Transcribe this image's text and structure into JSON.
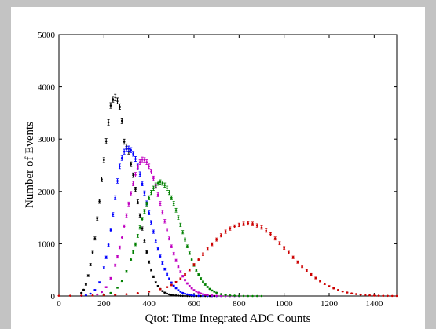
{
  "colors": {
    "figure_background": "#c3c3c3",
    "plot_background": "#ffffff",
    "axes": "#000000"
  },
  "chart_data": {
    "type": "scatter",
    "title": "",
    "xlabel": "Qtot: Time Integrated ADC Counts",
    "ylabel": "Number of Events",
    "xlim": [
      0,
      1500
    ],
    "ylim": [
      0,
      5000
    ],
    "grid": false,
    "legend": "none",
    "x_ticks": [
      0,
      200,
      400,
      600,
      800,
      1000,
      1200,
      1400
    ],
    "y_ticks": [
      0,
      1000,
      2000,
      3000,
      4000,
      5000
    ],
    "marker": "point with vertical error bar",
    "series": [
      {
        "color": "#000000",
        "x": [
          100,
          110,
          120,
          130,
          140,
          150,
          160,
          170,
          180,
          190,
          200,
          210,
          220,
          230,
          240,
          250,
          260,
          270,
          280,
          290,
          300,
          310,
          320,
          330,
          340,
          350,
          360,
          370,
          380,
          390,
          400,
          410,
          420,
          430,
          440,
          450,
          460,
          470,
          480,
          490,
          500,
          510,
          520,
          530,
          540,
          550,
          560,
          570,
          580,
          590,
          600,
          610,
          620,
          630,
          640,
          650,
          660,
          670,
          680,
          690,
          700
        ],
        "y": [
          60,
          120,
          220,
          390,
          600,
          830,
          1100,
          1480,
          1810,
          2230,
          2600,
          2960,
          3320,
          3640,
          3760,
          3800,
          3730,
          3620,
          3350,
          2950,
          2860,
          2760,
          2520,
          2310,
          2040,
          1800,
          1540,
          1290,
          1060,
          840,
          650,
          500,
          370,
          260,
          190,
          135,
          95,
          65,
          45,
          30,
          20,
          14,
          10,
          7,
          5,
          3,
          2,
          1,
          1,
          0,
          0,
          0,
          0,
          0,
          0,
          0,
          0,
          0,
          0,
          0,
          0
        ]
      },
      {
        "color": "#0000ff",
        "x": [
          100,
          120,
          140,
          160,
          180,
          200,
          210,
          220,
          230,
          240,
          250,
          260,
          270,
          280,
          290,
          300,
          310,
          320,
          330,
          340,
          350,
          360,
          370,
          380,
          390,
          400,
          410,
          420,
          430,
          440,
          450,
          460,
          470,
          480,
          490,
          500,
          510,
          520,
          530,
          540,
          550,
          560,
          570,
          580,
          590,
          600,
          620,
          640,
          660,
          680,
          700,
          720,
          740,
          760,
          780,
          800
        ],
        "y": [
          5,
          15,
          45,
          115,
          260,
          540,
          740,
          980,
          1260,
          1560,
          1880,
          2200,
          2480,
          2640,
          2760,
          2810,
          2820,
          2790,
          2720,
          2620,
          2480,
          2330,
          2150,
          1970,
          1780,
          1590,
          1410,
          1230,
          1060,
          900,
          760,
          630,
          515,
          415,
          330,
          255,
          195,
          150,
          112,
          83,
          60,
          43,
          31,
          22,
          15,
          10,
          5,
          2,
          1,
          0,
          0,
          0,
          0,
          0,
          0,
          0
        ]
      },
      {
        "color": "#c000c0",
        "x": [
          150,
          170,
          190,
          210,
          230,
          250,
          260,
          270,
          280,
          290,
          300,
          310,
          320,
          330,
          340,
          350,
          360,
          370,
          380,
          390,
          400,
          410,
          420,
          430,
          440,
          450,
          460,
          470,
          480,
          490,
          500,
          510,
          520,
          530,
          540,
          550,
          560,
          570,
          580,
          590,
          600,
          610,
          620,
          630,
          640,
          650,
          660,
          680,
          700,
          720,
          740,
          760,
          780,
          800
        ],
        "y": [
          10,
          30,
          75,
          170,
          340,
          590,
          750,
          930,
          1120,
          1330,
          1540,
          1760,
          1960,
          2150,
          2320,
          2460,
          2560,
          2610,
          2600,
          2560,
          2480,
          2380,
          2250,
          2100,
          1940,
          1770,
          1600,
          1430,
          1260,
          1100,
          950,
          810,
          680,
          565,
          465,
          380,
          305,
          240,
          190,
          148,
          114,
          87,
          66,
          49,
          36,
          26,
          19,
          10,
          5,
          2,
          1,
          0,
          0,
          0
        ]
      },
      {
        "color": "#008000",
        "x": [
          200,
          230,
          260,
          280,
          300,
          320,
          330,
          340,
          350,
          360,
          370,
          380,
          390,
          400,
          410,
          420,
          430,
          440,
          450,
          460,
          470,
          480,
          490,
          500,
          510,
          520,
          530,
          540,
          550,
          560,
          570,
          580,
          590,
          600,
          610,
          620,
          630,
          640,
          650,
          660,
          670,
          680,
          690,
          700,
          720,
          740,
          760,
          780,
          800,
          820,
          840,
          860,
          880,
          900
        ],
        "y": [
          20,
          60,
          160,
          290,
          470,
          700,
          840,
          990,
          1150,
          1310,
          1470,
          1620,
          1760,
          1880,
          1980,
          2060,
          2120,
          2160,
          2180,
          2160,
          2120,
          2060,
          1980,
          1880,
          1770,
          1640,
          1500,
          1360,
          1220,
          1080,
          950,
          820,
          700,
          590,
          495,
          410,
          335,
          272,
          218,
          173,
          136,
          106,
          82,
          63,
          36,
          20,
          11,
          6,
          3,
          1,
          0,
          0,
          0,
          0
        ]
      },
      {
        "color": "#cc0000",
        "x": [
          0,
          50,
          100,
          150,
          200,
          250,
          300,
          350,
          400,
          450,
          480,
          500,
          520,
          540,
          560,
          580,
          600,
          620,
          640,
          660,
          680,
          700,
          720,
          740,
          760,
          780,
          800,
          820,
          840,
          860,
          880,
          900,
          920,
          940,
          960,
          980,
          1000,
          1020,
          1040,
          1060,
          1080,
          1100,
          1120,
          1140,
          1160,
          1180,
          1200,
          1220,
          1240,
          1260,
          1280,
          1300,
          1320,
          1340,
          1360,
          1380,
          1400,
          1420,
          1440,
          1460,
          1480,
          1500
        ],
        "y": [
          5,
          5,
          8,
          10,
          15,
          22,
          35,
          55,
          85,
          130,
          170,
          210,
          265,
          330,
          410,
          500,
          600,
          700,
          800,
          900,
          990,
          1080,
          1160,
          1230,
          1290,
          1330,
          1360,
          1380,
          1390,
          1380,
          1350,
          1310,
          1250,
          1180,
          1100,
          1010,
          920,
          830,
          740,
          650,
          565,
          485,
          412,
          345,
          285,
          232,
          187,
          148,
          115,
          88,
          67,
          50,
          37,
          27,
          19,
          13,
          9,
          6,
          4,
          3,
          2,
          1
        ]
      }
    ]
  }
}
